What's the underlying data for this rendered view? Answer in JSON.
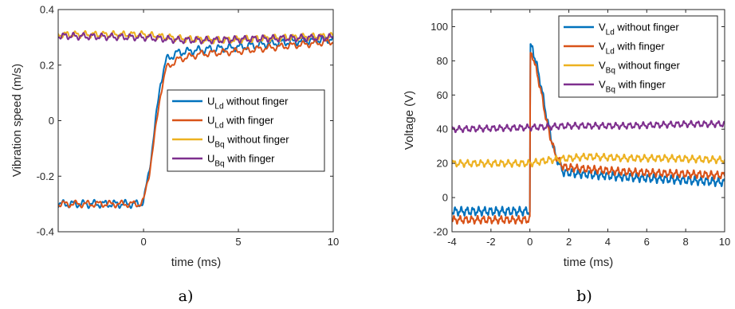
{
  "chart_data": [
    {
      "type": "line",
      "title": "",
      "xlabel": "time (ms)",
      "ylabel": "Vibration speed (m/s)",
      "xlim": [
        -4.5,
        10
      ],
      "ylim": [
        -0.4,
        0.4
      ],
      "xticks": [
        0,
        5,
        10
      ],
      "xtick_labels": [
        "0",
        "5",
        "10"
      ],
      "yticks": [
        -0.4,
        -0.2,
        0,
        0.2,
        0.4
      ],
      "ytick_labels": [
        "-0.4",
        "-0.2",
        "0",
        "0.2",
        "0.4"
      ],
      "panel_label": "a)",
      "legend_position": "center-right",
      "grid": false,
      "series": [
        {
          "name_main": "U",
          "name_sub": "Ld",
          "name_rest": " without finger",
          "color": "#0072BD",
          "points": [
            [
              -4.5,
              -0.3
            ],
            [
              -0.2,
              -0.3
            ],
            [
              0,
              -0.29
            ],
            [
              0.3,
              -0.18
            ],
            [
              0.6,
              -0.02
            ],
            [
              0.9,
              0.14
            ],
            [
              1.2,
              0.22
            ],
            [
              1.8,
              0.245
            ],
            [
              3,
              0.255
            ],
            [
              5,
              0.265
            ],
            [
              7,
              0.28
            ],
            [
              10,
              0.295
            ]
          ],
          "noise_amp": 0.014,
          "noise_period": 0.55
        },
        {
          "name_main": "U",
          "name_sub": "Ld",
          "name_rest": " with finger",
          "color": "#D95319",
          "points": [
            [
              -4.5,
              -0.3
            ],
            [
              -0.2,
              -0.3
            ],
            [
              0,
              -0.29
            ],
            [
              0.3,
              -0.19
            ],
            [
              0.6,
              -0.05
            ],
            [
              0.9,
              0.1
            ],
            [
              1.2,
              0.19
            ],
            [
              1.8,
              0.22
            ],
            [
              3,
              0.24
            ],
            [
              5,
              0.25
            ],
            [
              7,
              0.265
            ],
            [
              10,
              0.285
            ]
          ],
          "noise_amp": 0.012,
          "noise_period": 0.6
        },
        {
          "name_main": "U",
          "name_sub": "Bq",
          "name_rest": " without finger",
          "color": "#EDB120",
          "points": [
            [
              -4.5,
              0.31
            ],
            [
              0,
              0.31
            ],
            [
              2,
              0.295
            ],
            [
              4,
              0.29
            ],
            [
              6,
              0.295
            ],
            [
              10,
              0.305
            ]
          ],
          "noise_amp": 0.012,
          "noise_period": 0.5
        },
        {
          "name_main": "U",
          "name_sub": "Bq",
          "name_rest": " with finger",
          "color": "#7E2F8E",
          "points": [
            [
              -4.5,
              0.305
            ],
            [
              0,
              0.3
            ],
            [
              2,
              0.29
            ],
            [
              4,
              0.29
            ],
            [
              6,
              0.295
            ],
            [
              10,
              0.3
            ]
          ],
          "noise_amp": 0.012,
          "noise_period": 0.5
        }
      ]
    },
    {
      "type": "line",
      "title": "",
      "xlabel": "time (ms)",
      "ylabel": "Voltage (V)",
      "xlim": [
        -4,
        10
      ],
      "ylim": [
        -20,
        110
      ],
      "xticks": [
        -4,
        -2,
        0,
        2,
        4,
        6,
        8,
        10
      ],
      "xtick_labels": [
        "-4",
        "-2",
        "0",
        "2",
        "4",
        "6",
        "8",
        "10"
      ],
      "yticks": [
        -20,
        0,
        20,
        40,
        60,
        80,
        100
      ],
      "ytick_labels": [
        "-20",
        "0",
        "20",
        "40",
        "60",
        "80",
        "100"
      ],
      "panel_label": "b)",
      "legend_position": "top-right",
      "grid": false,
      "series": [
        {
          "name_main": "V",
          "name_sub": "Ld",
          "name_rest": " without finger",
          "color": "#0072BD",
          "points": [
            [
              -4,
              -8
            ],
            [
              -0.1,
              -8
            ],
            [
              0,
              -8
            ],
            [
              0.02,
              88
            ],
            [
              0.15,
              87
            ],
            [
              0.5,
              70
            ],
            [
              0.9,
              45
            ],
            [
              1.3,
              25
            ],
            [
              1.7,
              15
            ],
            [
              2.5,
              14
            ],
            [
              5,
              12
            ],
            [
              10,
              9
            ]
          ],
          "noise_amp": 2.5,
          "noise_period": 0.3
        },
        {
          "name_main": "V",
          "name_sub": "Ld",
          "name_rest": " with finger",
          "color": "#D95319",
          "points": [
            [
              -4,
              -13
            ],
            [
              -0.1,
              -13
            ],
            [
              0,
              -13
            ],
            [
              0.02,
              84
            ],
            [
              0.15,
              83
            ],
            [
              0.5,
              66
            ],
            [
              0.9,
              42
            ],
            [
              1.3,
              25
            ],
            [
              1.7,
              18
            ],
            [
              2.5,
              17
            ],
            [
              5,
              15
            ],
            [
              10,
              13
            ]
          ],
          "noise_amp": 2.2,
          "noise_period": 0.3
        },
        {
          "name_main": "V",
          "name_sub": "Bq",
          "name_rest": " without finger",
          "color": "#EDB120",
          "points": [
            [
              -4,
              20
            ],
            [
              0,
              20
            ],
            [
              1,
              22
            ],
            [
              2,
              23
            ],
            [
              3,
              24
            ],
            [
              5,
              23
            ],
            [
              7,
              23
            ],
            [
              10,
              22
            ]
          ],
          "noise_amp": 2.0,
          "noise_period": 0.35
        },
        {
          "name_main": "V",
          "name_sub": "Bq",
          "name_rest": " with finger",
          "color": "#7E2F8E",
          "points": [
            [
              -4,
              40
            ],
            [
              0,
              41
            ],
            [
              2,
              42
            ],
            [
              5,
              42
            ],
            [
              8,
              43
            ],
            [
              10,
              43
            ]
          ],
          "noise_amp": 1.8,
          "noise_period": 0.35
        }
      ]
    }
  ]
}
